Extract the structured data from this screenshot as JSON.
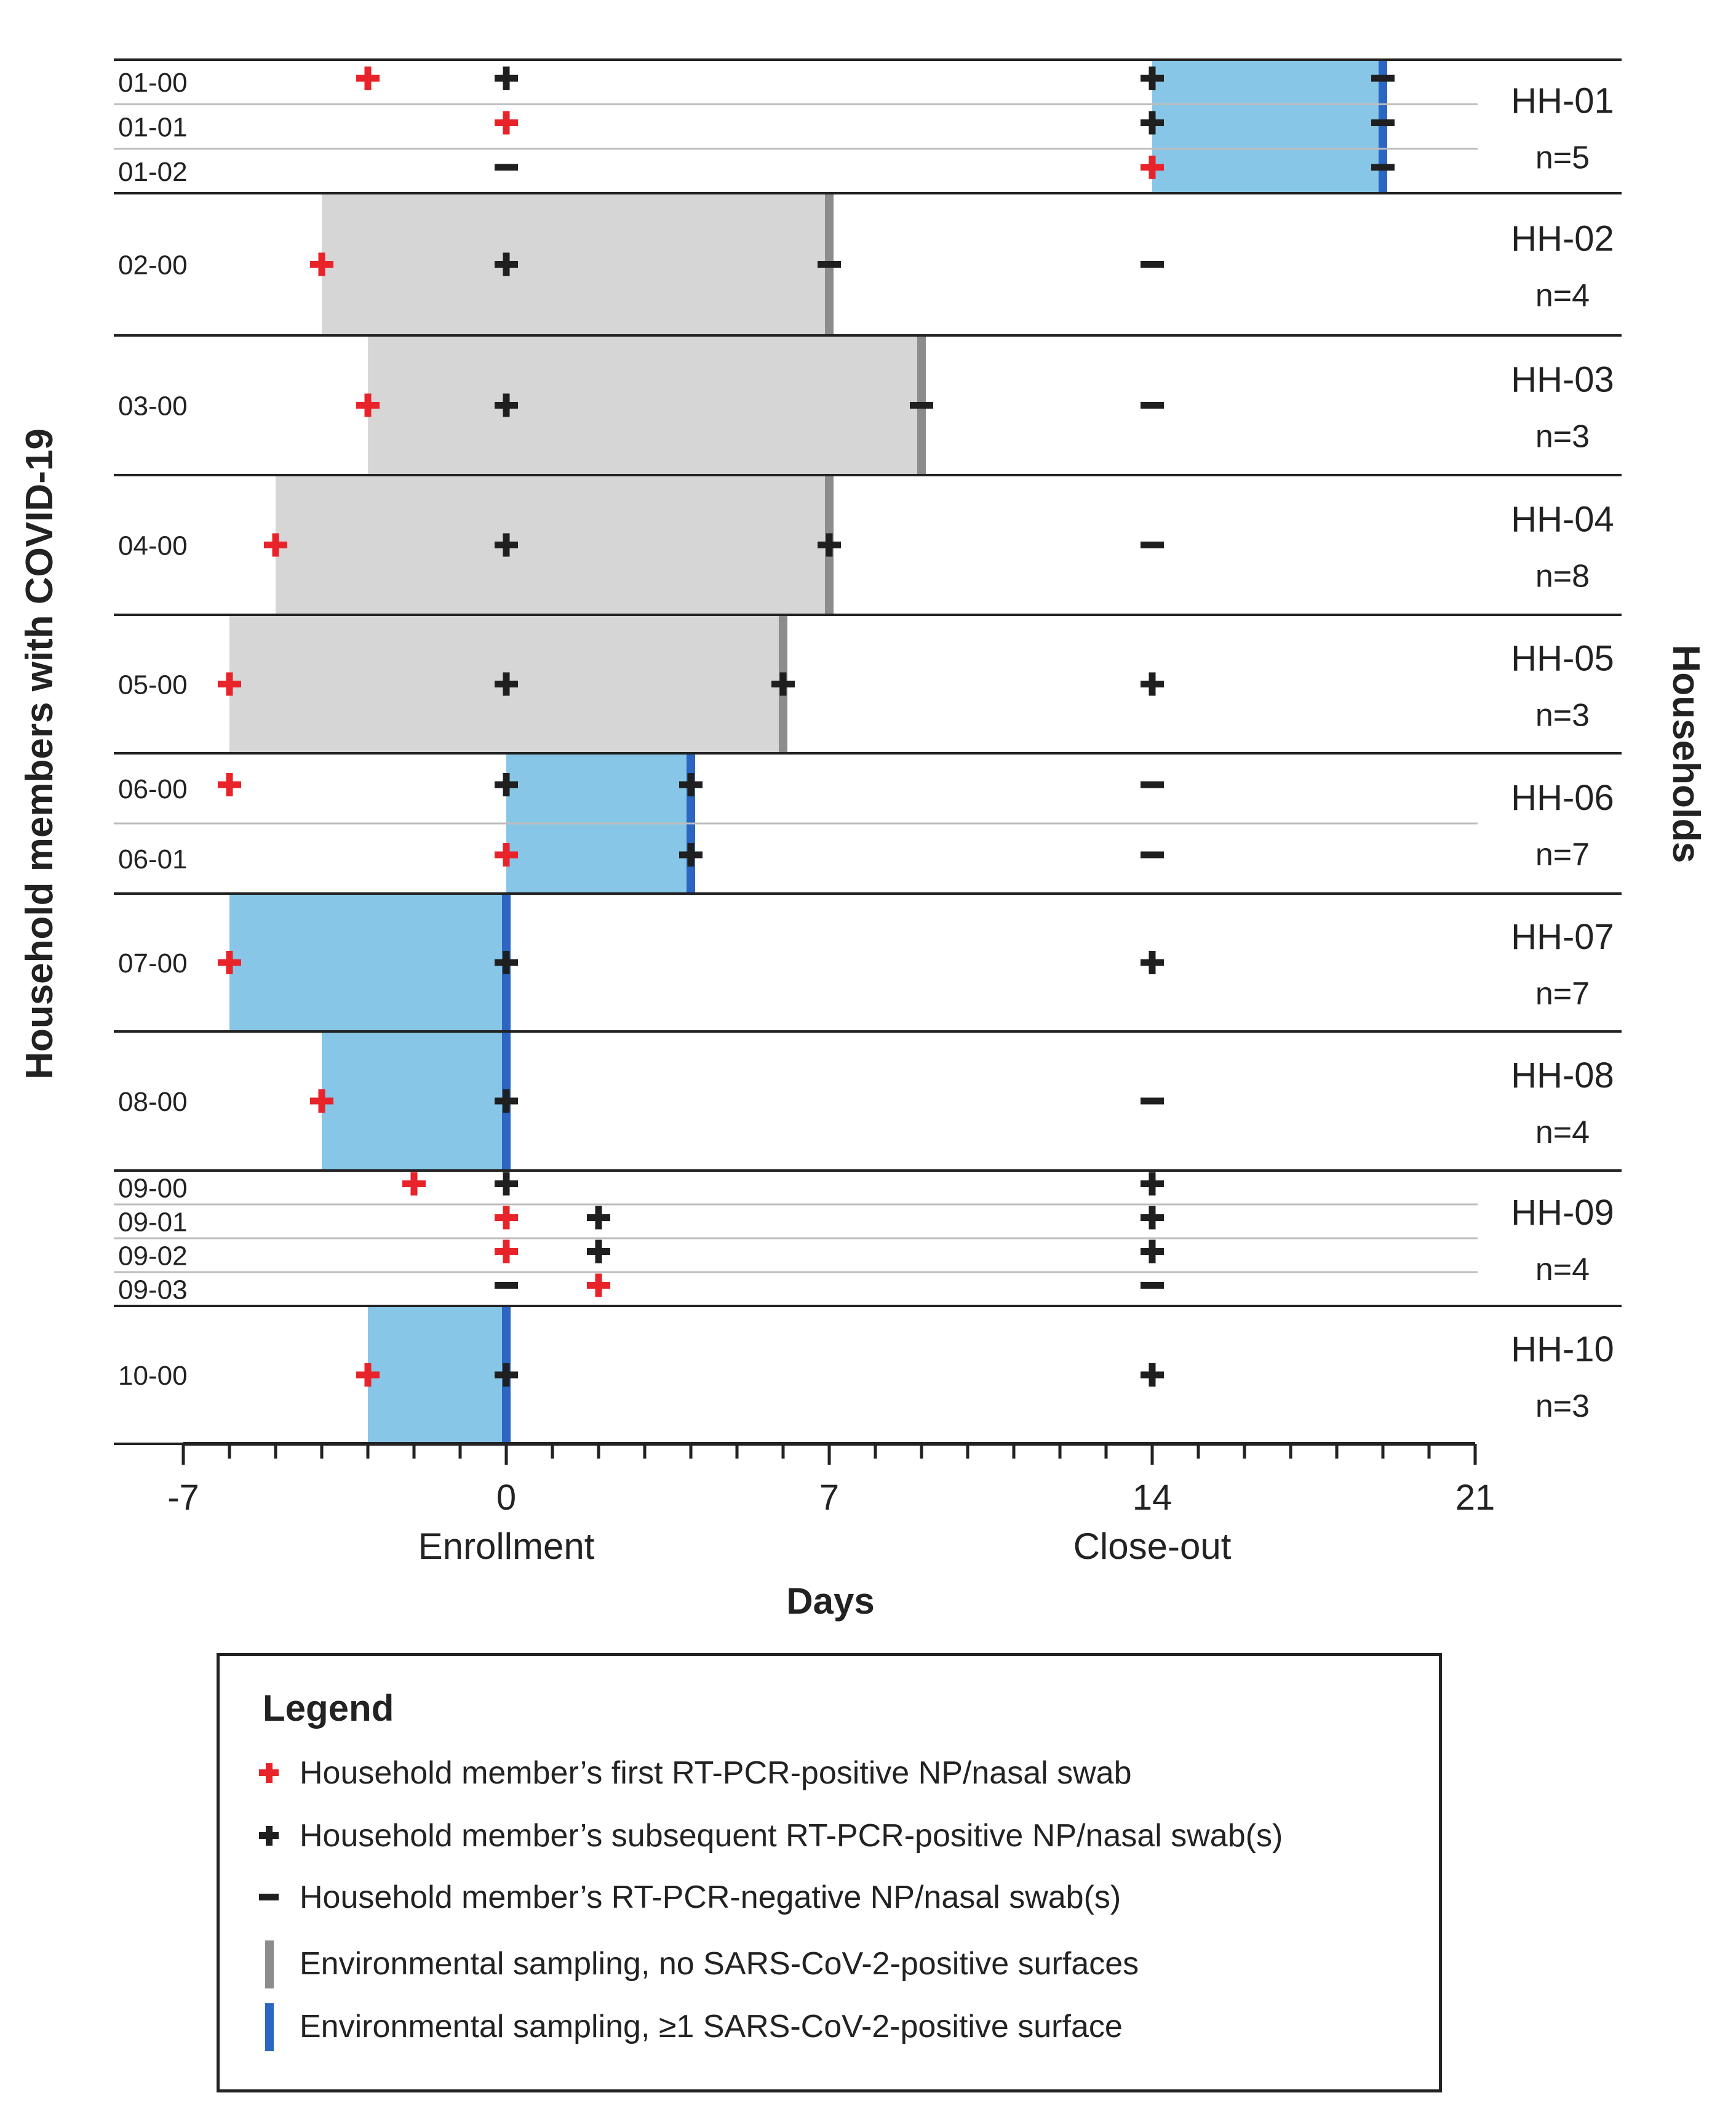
{
  "colors": {
    "first_positive": "#e8232a",
    "subsequent_positive": "#1f1f1f",
    "negative": "#1f1f1f",
    "env_gray_fill": "#d6d6d6",
    "env_gray_line": "#8c8c8c",
    "env_blue_fill": "#87c6e6",
    "env_blue_line": "#2a66c2"
  },
  "chart_data": {
    "type": "timeline",
    "xlabel": "Days",
    "ylabel": "Household members with COVID-19",
    "right_label": "Households",
    "xlim": [
      -7,
      21
    ],
    "x_ticks": [
      -7,
      0,
      7,
      14,
      21
    ],
    "x_tick_labels": [
      "-7",
      "0",
      "7",
      "14",
      "21"
    ],
    "x_annotations": [
      {
        "x": 0,
        "text": "Enrollment"
      },
      {
        "x": 14,
        "text": "Close-out"
      }
    ],
    "households": [
      {
        "id": "HH-01",
        "n": "n=5",
        "rows": [
          "01-00",
          "01-01",
          "01-02"
        ],
        "shading": {
          "start": 14,
          "end": 19,
          "type": "blue"
        },
        "markers": [
          {
            "row": 0,
            "x": -3,
            "sym": "first"
          },
          {
            "row": 0,
            "x": 0,
            "sym": "plus"
          },
          {
            "row": 0,
            "x": 14,
            "sym": "plus"
          },
          {
            "row": 0,
            "x": 19,
            "sym": "minus"
          },
          {
            "row": 1,
            "x": 0,
            "sym": "first"
          },
          {
            "row": 1,
            "x": 14,
            "sym": "plus"
          },
          {
            "row": 1,
            "x": 19,
            "sym": "minus"
          },
          {
            "row": 2,
            "x": 0,
            "sym": "minus"
          },
          {
            "row": 2,
            "x": 14,
            "sym": "first"
          },
          {
            "row": 2,
            "x": 19,
            "sym": "minus"
          }
        ]
      },
      {
        "id": "HH-02",
        "n": "n=4",
        "rows": [
          "02-00"
        ],
        "shading": {
          "start": -4,
          "end": 7,
          "type": "gray"
        },
        "markers": [
          {
            "row": 0,
            "x": -4,
            "sym": "first"
          },
          {
            "row": 0,
            "x": 0,
            "sym": "plus"
          },
          {
            "row": 0,
            "x": 7,
            "sym": "minus"
          },
          {
            "row": 0,
            "x": 14,
            "sym": "minus"
          }
        ]
      },
      {
        "id": "HH-03",
        "n": "n=3",
        "rows": [
          "03-00"
        ],
        "shading": {
          "start": -3,
          "end": 9,
          "type": "gray"
        },
        "markers": [
          {
            "row": 0,
            "x": -3,
            "sym": "first"
          },
          {
            "row": 0,
            "x": 0,
            "sym": "plus"
          },
          {
            "row": 0,
            "x": 9,
            "sym": "minus"
          },
          {
            "row": 0,
            "x": 14,
            "sym": "minus"
          }
        ]
      },
      {
        "id": "HH-04",
        "n": "n=8",
        "rows": [
          "04-00"
        ],
        "shading": {
          "start": -5,
          "end": 7,
          "type": "gray"
        },
        "markers": [
          {
            "row": 0,
            "x": -5,
            "sym": "first"
          },
          {
            "row": 0,
            "x": 0,
            "sym": "plus"
          },
          {
            "row": 0,
            "x": 7,
            "sym": "plus"
          },
          {
            "row": 0,
            "x": 14,
            "sym": "minus"
          }
        ]
      },
      {
        "id": "HH-05",
        "n": "n=3",
        "rows": [
          "05-00"
        ],
        "shading": {
          "start": -6,
          "end": 6,
          "type": "gray"
        },
        "markers": [
          {
            "row": 0,
            "x": -6,
            "sym": "first"
          },
          {
            "row": 0,
            "x": 0,
            "sym": "plus"
          },
          {
            "row": 0,
            "x": 6,
            "sym": "plus"
          },
          {
            "row": 0,
            "x": 14,
            "sym": "plus"
          }
        ]
      },
      {
        "id": "HH-06",
        "n": "n=7",
        "rows": [
          "06-00",
          "06-01"
        ],
        "shading": {
          "start": 0,
          "end": 4,
          "type": "blue"
        },
        "markers": [
          {
            "row": 0,
            "x": -6,
            "sym": "first"
          },
          {
            "row": 0,
            "x": 0,
            "sym": "plus"
          },
          {
            "row": 0,
            "x": 4,
            "sym": "plus"
          },
          {
            "row": 0,
            "x": 14,
            "sym": "minus"
          },
          {
            "row": 1,
            "x": 0,
            "sym": "first"
          },
          {
            "row": 1,
            "x": 4,
            "sym": "plus"
          },
          {
            "row": 1,
            "x": 14,
            "sym": "minus"
          }
        ]
      },
      {
        "id": "HH-07",
        "n": "n=7",
        "rows": [
          "07-00"
        ],
        "shading": {
          "start": -6,
          "end": 0,
          "type": "blue"
        },
        "markers": [
          {
            "row": 0,
            "x": -6,
            "sym": "first"
          },
          {
            "row": 0,
            "x": 0,
            "sym": "plus"
          },
          {
            "row": 0,
            "x": 14,
            "sym": "plus"
          }
        ]
      },
      {
        "id": "HH-08",
        "n": "n=4",
        "rows": [
          "08-00"
        ],
        "shading": {
          "start": -4,
          "end": 0,
          "type": "blue"
        },
        "markers": [
          {
            "row": 0,
            "x": -4,
            "sym": "first"
          },
          {
            "row": 0,
            "x": 0,
            "sym": "plus"
          },
          {
            "row": 0,
            "x": 14,
            "sym": "minus"
          }
        ]
      },
      {
        "id": "HH-09",
        "n": "n=4",
        "rows": [
          "09-00",
          "09-01",
          "09-02",
          "09-03"
        ],
        "shading": null,
        "markers": [
          {
            "row": 0,
            "x": -2,
            "sym": "first"
          },
          {
            "row": 0,
            "x": 0,
            "sym": "plus"
          },
          {
            "row": 0,
            "x": 14,
            "sym": "plus"
          },
          {
            "row": 1,
            "x": 0,
            "sym": "first"
          },
          {
            "row": 1,
            "x": 2,
            "sym": "plus"
          },
          {
            "row": 1,
            "x": 14,
            "sym": "plus"
          },
          {
            "row": 2,
            "x": 0,
            "sym": "first"
          },
          {
            "row": 2,
            "x": 2,
            "sym": "plus"
          },
          {
            "row": 2,
            "x": 14,
            "sym": "plus"
          },
          {
            "row": 3,
            "x": 0,
            "sym": "minus"
          },
          {
            "row": 3,
            "x": 2,
            "sym": "first"
          },
          {
            "row": 3,
            "x": 14,
            "sym": "minus"
          }
        ]
      },
      {
        "id": "HH-10",
        "n": "n=3",
        "rows": [
          "10-00"
        ],
        "shading": {
          "start": -3,
          "end": 0,
          "type": "blue"
        },
        "markers": [
          {
            "row": 0,
            "x": -3,
            "sym": "first"
          },
          {
            "row": 0,
            "x": 0,
            "sym": "plus"
          },
          {
            "row": 0,
            "x": 14,
            "sym": "plus"
          }
        ]
      }
    ]
  },
  "legend": {
    "title": "Legend",
    "items": [
      {
        "icon": "red-plus-icon",
        "text": "Household member’s first RT-PCR-positive NP/nasal swab"
      },
      {
        "icon": "black-plus-icon",
        "text": "Household member’s subsequent RT-PCR-positive NP/nasal swab(s)"
      },
      {
        "icon": "black-minus-icon",
        "text": "Household member’s RT-PCR-negative NP/nasal swab(s)"
      },
      {
        "icon": "gray-bar-icon",
        "text": "Environmental sampling, no SARS-CoV-2-positive surfaces"
      },
      {
        "icon": "blue-bar-icon",
        "text": "Environmental sampling, ≥1 SARS-CoV-2-positive surface"
      }
    ]
  }
}
